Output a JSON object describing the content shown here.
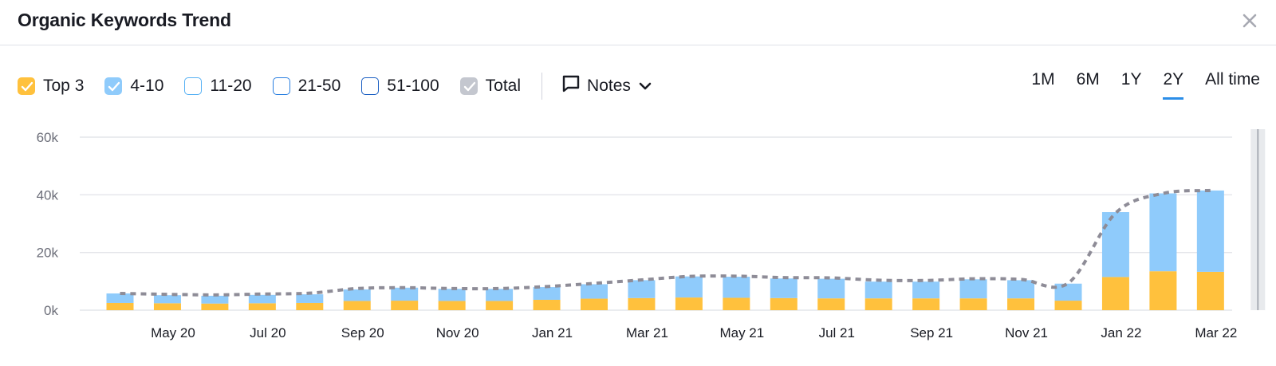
{
  "title": "Organic Keywords Trend",
  "legend": [
    {
      "label": "Top 3",
      "checked": true,
      "color": "#ffc13d",
      "border": "#ffc13d"
    },
    {
      "label": "4-10",
      "checked": true,
      "color": "#8fcbfb",
      "border": "#8fcbfb"
    },
    {
      "label": "11-20",
      "checked": false,
      "color": "#ffffff",
      "border": "#57b1f4"
    },
    {
      "label": "21-50",
      "checked": false,
      "color": "#ffffff",
      "border": "#2a7fe0"
    },
    {
      "label": "51-100",
      "checked": false,
      "color": "#ffffff",
      "border": "#1b5fc2"
    },
    {
      "label": "Total",
      "checked": true,
      "color": "#c4c7cf",
      "border": "#c4c7cf"
    }
  ],
  "notes_label": "Notes",
  "periods": [
    {
      "label": "1M",
      "active": false
    },
    {
      "label": "6M",
      "active": false
    },
    {
      "label": "1Y",
      "active": false
    },
    {
      "label": "2Y",
      "active": true
    },
    {
      "label": "All time",
      "active": false
    }
  ],
  "colors": {
    "top3": "#ffc13d",
    "r4_10": "#8fcbfb",
    "total_line": "#8e8c97",
    "grid": "#e4e5ea",
    "accent": "#2b8ee8"
  },
  "chart_data": {
    "type": "bar",
    "stacked": true,
    "ylim": [
      0,
      60000
    ],
    "yticks": [
      "0k",
      "20k",
      "40k",
      "60k"
    ],
    "ytick_values": [
      0,
      20000,
      40000,
      60000
    ],
    "categories": [
      "Apr 20",
      "May 20",
      "Jun 20",
      "Jul 20",
      "Aug 20",
      "Sep 20",
      "Oct 20",
      "Nov 20",
      "Dec 20",
      "Jan 21",
      "Feb 21",
      "Mar 21",
      "Apr 21",
      "May 21",
      "Jun 21",
      "Jul 21",
      "Aug 21",
      "Sep 21",
      "Oct 21",
      "Nov 21",
      "Dec 21",
      "Jan 22",
      "Feb 22",
      "Mar 22",
      "Apr 22"
    ],
    "x_tick_labels": [
      "May 20",
      "Jul 20",
      "Sep 20",
      "Nov 20",
      "Jan 21",
      "Mar 21",
      "May 21",
      "Jul 21",
      "Sep 21",
      "Nov 21",
      "Jan 22",
      "Mar 22"
    ],
    "x_tick_indices": [
      1,
      3,
      5,
      7,
      9,
      11,
      13,
      15,
      17,
      19,
      21,
      23
    ],
    "series": [
      {
        "name": "Top 3",
        "values": [
          2500,
          2400,
          2300,
          2400,
          2500,
          3200,
          3300,
          3200,
          3200,
          3600,
          4000,
          4200,
          4400,
          4300,
          4200,
          4100,
          4100,
          4100,
          4100,
          4100,
          3300,
          11500,
          13500,
          13300,
          0
        ]
      },
      {
        "name": "4-10",
        "values": [
          3300,
          2800,
          2700,
          2900,
          3000,
          4000,
          4500,
          4200,
          4200,
          4400,
          5000,
          6200,
          7300,
          7300,
          6800,
          6800,
          5800,
          5800,
          6600,
          6300,
          5900,
          22500,
          27000,
          28200,
          0
        ]
      },
      {
        "name": "Total",
        "values": [
          5800,
          5500,
          5300,
          5600,
          5900,
          7500,
          7800,
          7500,
          7500,
          8200,
          9300,
          10500,
          11700,
          11800,
          11300,
          11200,
          10400,
          10300,
          10900,
          10700,
          9400,
          33700,
          40500,
          41500,
          null
        ]
      }
    ],
    "grid": true
  }
}
